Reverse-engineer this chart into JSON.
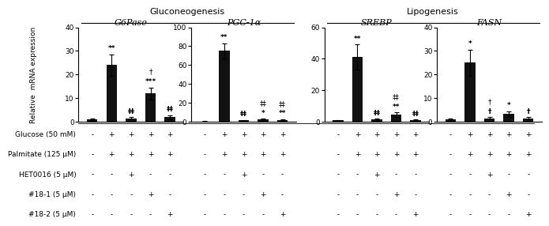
{
  "panels": [
    {
      "title": "G6Pase",
      "ylim": [
        0,
        40
      ],
      "yticks": [
        0,
        10,
        20,
        30,
        40
      ],
      "values": [
        1.0,
        24.0,
        1.5,
        12.0,
        2.0
      ],
      "errors": [
        0.3,
        4.5,
        0.5,
        2.5,
        0.8
      ],
      "ann1": [
        "",
        "**",
        "‡‡",
        "***",
        "‡‡"
      ],
      "ann2": [
        "",
        "",
        "",
        "†",
        ""
      ],
      "group": 0
    },
    {
      "title": "PGC-1α",
      "ylim": [
        0,
        100
      ],
      "yticks": [
        0,
        20,
        40,
        60,
        80,
        100
      ],
      "values": [
        0.5,
        75.0,
        1.5,
        2.5,
        2.0
      ],
      "errors": [
        0.2,
        8.0,
        0.5,
        0.8,
        0.6
      ],
      "ann1": [
        "",
        "**",
        "‡‡",
        "*",
        "**"
      ],
      "ann2": [
        "",
        "",
        "",
        "‡‡",
        "‡‡"
      ],
      "group": 0
    },
    {
      "title": "SREBP",
      "ylim": [
        0,
        60
      ],
      "yticks": [
        0,
        20,
        40,
        60
      ],
      "values": [
        1.0,
        41.0,
        1.5,
        4.5,
        1.0
      ],
      "errors": [
        0.3,
        8.0,
        0.5,
        1.5,
        0.4
      ],
      "ann1": [
        "",
        "**",
        "‡‡",
        "**",
        "‡‡"
      ],
      "ann2": [
        "",
        "",
        "",
        "‡‡",
        ""
      ],
      "group": 1
    },
    {
      "title": "FASN",
      "ylim": [
        0,
        40
      ],
      "yticks": [
        0,
        10,
        20,
        30,
        40
      ],
      "values": [
        1.0,
        25.0,
        1.5,
        3.5,
        1.5
      ],
      "errors": [
        0.3,
        5.5,
        0.5,
        1.0,
        0.5
      ],
      "ann1": [
        "",
        "*",
        "†",
        "*",
        "†"
      ],
      "ann2": [
        "",
        "",
        "†",
        "",
        ""
      ],
      "group": 1
    }
  ],
  "group_labels": [
    "Gluconeogenesis",
    "Lipogenesis"
  ],
  "bar_color": "#111111",
  "bar_width": 0.55,
  "ylabel": "Relative  mRNA expression",
  "condition_rows": [
    "Glucose (50 mM)",
    "Palmitate (125 μM)",
    "HET0016 (5 μM)",
    "#18-1 (5 μM)",
    "#18-2 (5 μM)"
  ],
  "conditions_per_panel": [
    [
      "-",
      "+",
      "+",
      "+",
      "+"
    ],
    [
      "-",
      "+",
      "+",
      "+",
      "+"
    ],
    [
      "-",
      "-",
      "+",
      "-",
      "-"
    ],
    [
      "-",
      "-",
      "-",
      "+",
      "-"
    ],
    [
      "-",
      "-",
      "-",
      "-",
      "+"
    ]
  ],
  "font_size": 6.5,
  "ann_font_size": 6.5,
  "title_font_size": 8,
  "group_font_size": 8
}
